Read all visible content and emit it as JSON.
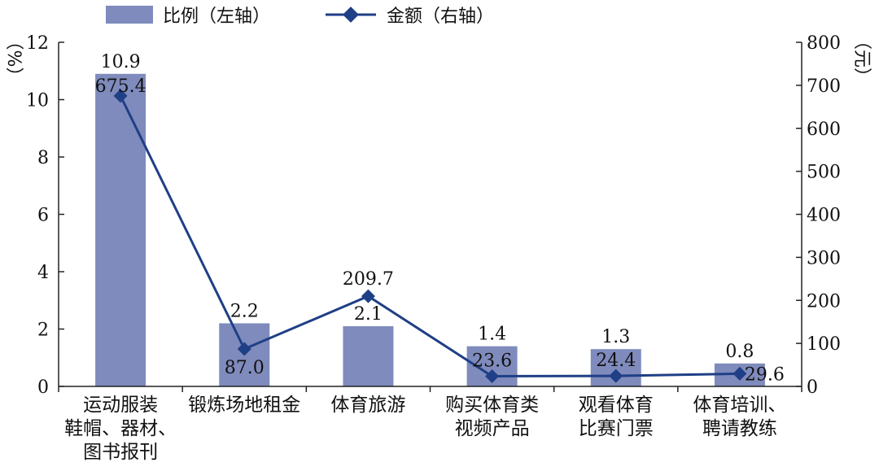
{
  "chart_data": {
    "type": "bar",
    "categories": [
      [
        "运动服装",
        "鞋帽、器材、",
        "图书报刊"
      ],
      [
        "锻炼场地租金"
      ],
      [
        "体育旅游"
      ],
      [
        "购买体育类",
        "视频产品"
      ],
      [
        "观看体育",
        "比赛门票"
      ],
      [
        "体育培训、",
        "聘请教练"
      ]
    ],
    "series": [
      {
        "name": "比例（左轴）",
        "type": "bar",
        "axis": "left",
        "color": "#7f8bbc",
        "values": [
          10.9,
          2.2,
          2.1,
          1.4,
          1.3,
          0.8
        ],
        "labels": [
          "10.9",
          "2.2",
          "2.1",
          "1.4",
          "1.3",
          "0.8"
        ]
      },
      {
        "name": "金额（右轴）",
        "type": "line",
        "axis": "right",
        "color": "#1f3f86",
        "values": [
          675.4,
          87.0,
          209.7,
          23.6,
          24.4,
          29.6
        ],
        "labels": [
          "675.4",
          "87.0",
          "209.7",
          "23.6",
          "24.4",
          "29.6"
        ]
      }
    ],
    "y_left": {
      "label": "（%）",
      "ticks": [
        "0",
        "2",
        "4",
        "6",
        "8",
        "10",
        "12"
      ],
      "range": [
        0,
        12
      ]
    },
    "y_right": {
      "label": "（元）",
      "ticks": [
        "0",
        "100",
        "200",
        "300",
        "400",
        "500",
        "600",
        "700",
        "800"
      ],
      "range": [
        0,
        800
      ]
    },
    "legend_position": "top",
    "grid": false
  }
}
